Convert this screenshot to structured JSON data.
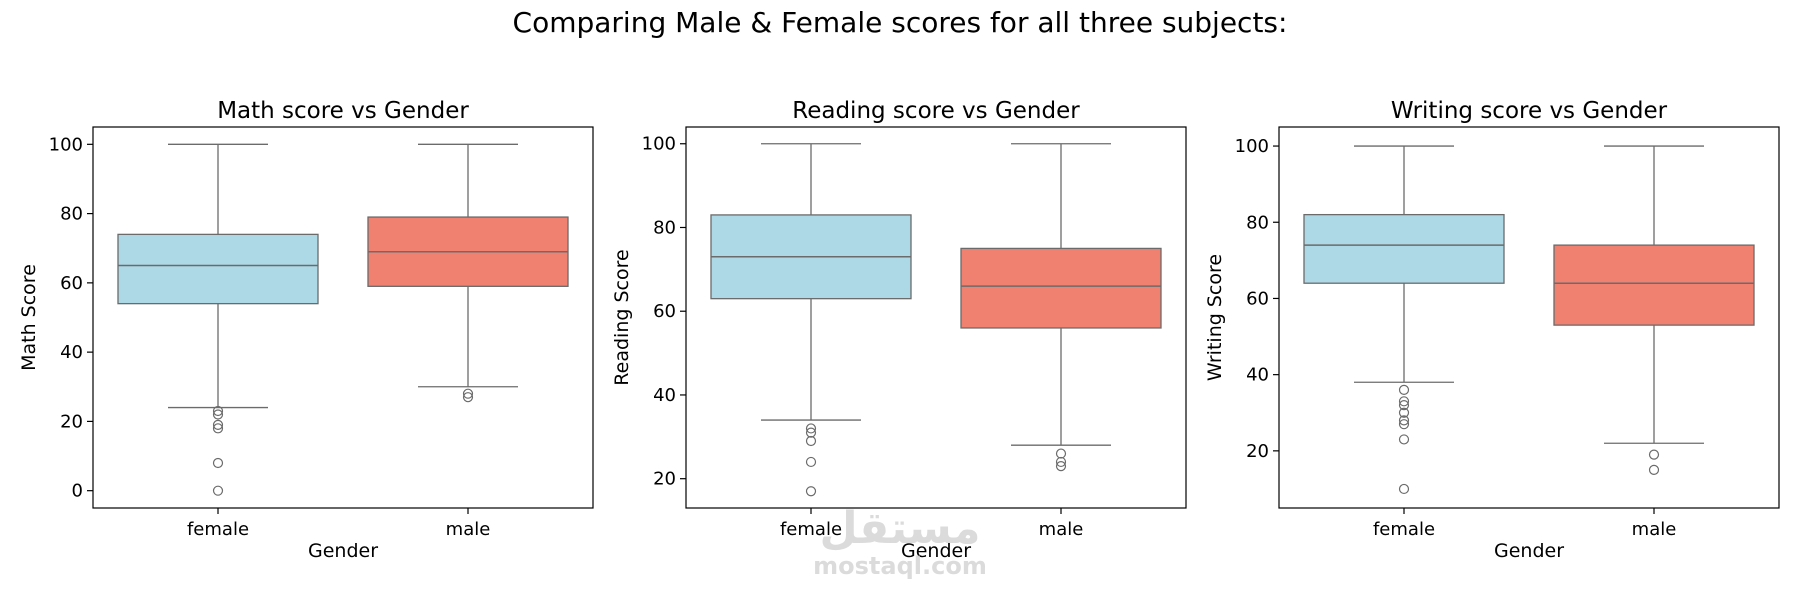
{
  "figure": {
    "title": "Comparing Male & Female scores for all three subjects:"
  },
  "watermark": {
    "arabic": "مستقل",
    "latin": "mostaql.com"
  },
  "colors": {
    "female": "#add8e6",
    "male": "#f08070",
    "edge": "#6b6b6b",
    "axes": "#000000"
  },
  "chart_data": [
    {
      "type": "box",
      "title": "Math score vs Gender",
      "xlabel": "Gender",
      "ylabel": "Math Score",
      "categories": [
        "female",
        "male"
      ],
      "ylim": [
        -5,
        105
      ],
      "yticks": [
        0,
        20,
        40,
        60,
        80,
        100
      ],
      "boxes": [
        {
          "category": "female",
          "whisker_low": 24,
          "q1": 54,
          "median": 65,
          "q3": 74,
          "whisker_high": 100,
          "outliers": [
            23,
            22,
            19,
            18,
            8,
            0
          ]
        },
        {
          "category": "male",
          "whisker_low": 30,
          "q1": 59,
          "median": 69,
          "q3": 79,
          "whisker_high": 100,
          "outliers": [
            28,
            27
          ]
        }
      ]
    },
    {
      "type": "box",
      "title": "Reading score vs Gender",
      "xlabel": "Gender",
      "ylabel": "Reading Score",
      "categories": [
        "female",
        "male"
      ],
      "ylim": [
        13,
        104
      ],
      "yticks": [
        20,
        40,
        60,
        80,
        100
      ],
      "boxes": [
        {
          "category": "female",
          "whisker_low": 34,
          "q1": 63,
          "median": 73,
          "q3": 83,
          "whisker_high": 100,
          "outliers": [
            32,
            31,
            29,
            24,
            17
          ]
        },
        {
          "category": "male",
          "whisker_low": 28,
          "q1": 56,
          "median": 66,
          "q3": 75,
          "whisker_high": 100,
          "outliers": [
            26,
            24,
            23
          ]
        }
      ]
    },
    {
      "type": "box",
      "title": "Writing score vs Gender",
      "xlabel": "Gender",
      "ylabel": "Writing Score",
      "categories": [
        "female",
        "male"
      ],
      "ylim": [
        5,
        105
      ],
      "yticks": [
        20,
        40,
        60,
        80,
        100
      ],
      "boxes": [
        {
          "category": "female",
          "whisker_low": 38,
          "q1": 64,
          "median": 74,
          "q3": 82,
          "whisker_high": 100,
          "outliers": [
            36,
            33,
            32,
            30,
            28,
            27,
            23,
            10
          ]
        },
        {
          "category": "male",
          "whisker_low": 22,
          "q1": 53,
          "median": 64,
          "q3": 74,
          "whisker_high": 100,
          "outliers": [
            19,
            15
          ]
        }
      ]
    }
  ]
}
